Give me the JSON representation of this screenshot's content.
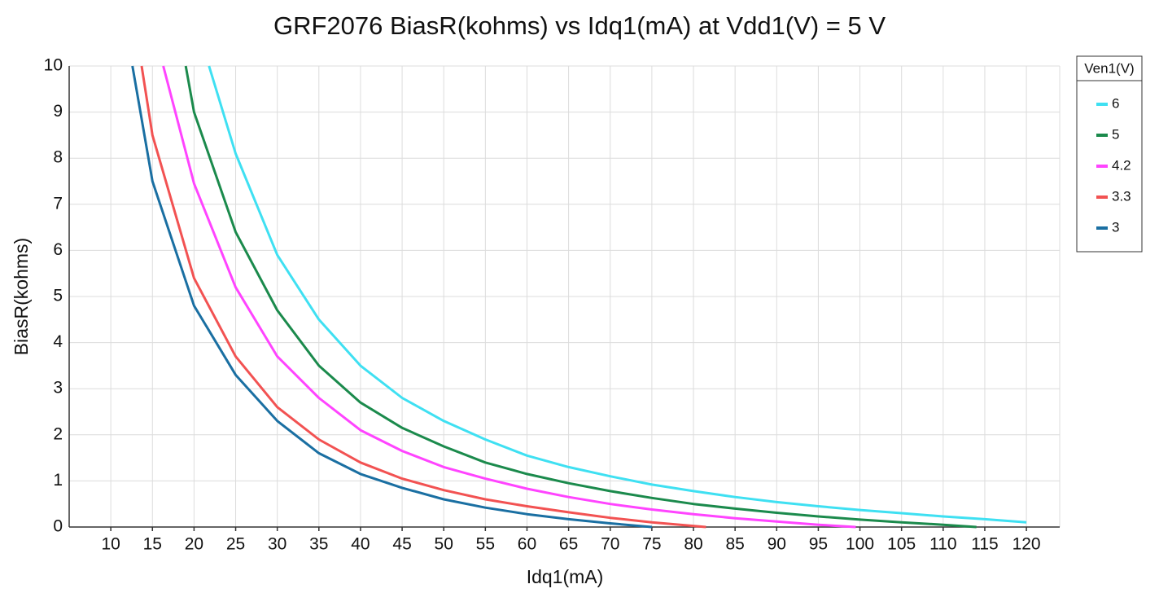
{
  "chart_data": {
    "type": "line",
    "title": "GRF2076 BiasR(kohms) vs Idq1(mA) at Vdd1(V) = 5 V",
    "x_label": "Idq1(mA)",
    "y_label": "BiasR(kohms)",
    "legend_title": "Ven1(V)",
    "legend": "outside-right-top",
    "grid": true,
    "xlim": [
      5,
      124
    ],
    "ylim": [
      0,
      10
    ],
    "xticks": [
      10,
      15,
      20,
      25,
      30,
      35,
      40,
      45,
      50,
      55,
      60,
      65,
      70,
      75,
      80,
      85,
      90,
      95,
      100,
      105,
      110,
      115,
      120
    ],
    "yticks": [
      0,
      1,
      2,
      3,
      4,
      5,
      6,
      7,
      8,
      9,
      10
    ],
    "series": [
      {
        "name": "6",
        "color": "#3fe0f2",
        "x": [
          21.8,
          25,
          30,
          35,
          40,
          45,
          50,
          55,
          60,
          65,
          70,
          75,
          80,
          85,
          90,
          95,
          100,
          105,
          110,
          115,
          120
        ],
        "values": [
          10,
          8.1,
          5.9,
          4.5,
          3.5,
          2.8,
          2.3,
          1.9,
          1.55,
          1.3,
          1.1,
          0.92,
          0.78,
          0.65,
          0.54,
          0.45,
          0.37,
          0.3,
          0.23,
          0.17,
          0.1
        ]
      },
      {
        "name": "5",
        "color": "#1b8a4c",
        "x": [
          19,
          20,
          25,
          30,
          35,
          40,
          45,
          50,
          55,
          60,
          65,
          70,
          75,
          80,
          85,
          90,
          95,
          100,
          105,
          110,
          114
        ],
        "values": [
          10,
          9.0,
          6.4,
          4.7,
          3.5,
          2.7,
          2.15,
          1.75,
          1.4,
          1.15,
          0.95,
          0.78,
          0.63,
          0.5,
          0.4,
          0.31,
          0.23,
          0.16,
          0.1,
          0.05,
          0
        ]
      },
      {
        "name": "4.2",
        "color": "#ff44ff",
        "x": [
          16.3,
          20,
          25,
          30,
          35,
          40,
          45,
          50,
          55,
          60,
          65,
          70,
          75,
          80,
          85,
          90,
          95,
          99.5
        ],
        "values": [
          10,
          7.45,
          5.2,
          3.7,
          2.8,
          2.1,
          1.65,
          1.3,
          1.05,
          0.83,
          0.65,
          0.5,
          0.38,
          0.28,
          0.19,
          0.12,
          0.05,
          0
        ]
      },
      {
        "name": "3.3",
        "color": "#f25252",
        "x": [
          13.7,
          15,
          20,
          25,
          30,
          35,
          40,
          45,
          50,
          55,
          60,
          65,
          70,
          75,
          81.5
        ],
        "values": [
          10,
          8.5,
          5.4,
          3.7,
          2.6,
          1.9,
          1.4,
          1.05,
          0.8,
          0.6,
          0.45,
          0.32,
          0.2,
          0.1,
          0
        ]
      },
      {
        "name": "3",
        "color": "#1a6fa2",
        "x": [
          12.6,
          15,
          20,
          25,
          30,
          35,
          40,
          45,
          50,
          55,
          60,
          65,
          70,
          75
        ],
        "values": [
          10,
          7.5,
          4.8,
          3.3,
          2.3,
          1.6,
          1.15,
          0.85,
          0.6,
          0.42,
          0.28,
          0.17,
          0.08,
          0
        ]
      }
    ]
  }
}
